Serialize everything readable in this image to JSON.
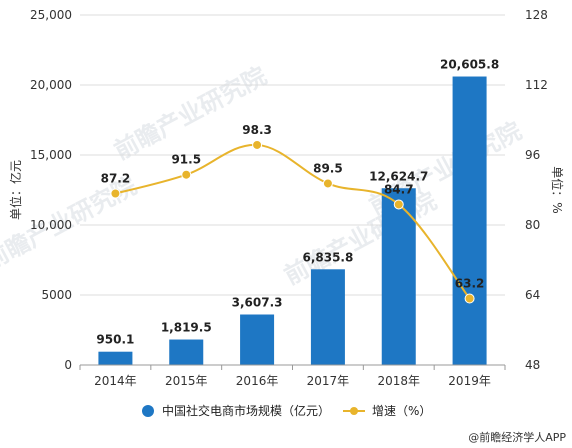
{
  "chart_data": {
    "type": "bar+line",
    "categories": [
      "2014年",
      "2015年",
      "2016年",
      "2017年",
      "2018年",
      "2019年"
    ],
    "series": [
      {
        "name": "中国社交电商市场规模（亿元）",
        "type": "bar",
        "axis": "left",
        "values": [
          950.1,
          1819.5,
          3607.3,
          6835.8,
          12624.7,
          20605.8
        ],
        "labels": [
          "950.1",
          "1,819.5",
          "3,607.3",
          "6,835.8",
          "12,624.7",
          "20,605.8"
        ]
      },
      {
        "name": "增速（%）",
        "type": "line",
        "axis": "right",
        "values": [
          87.2,
          91.5,
          98.3,
          89.5,
          84.7,
          63.2
        ],
        "labels": [
          "87.2",
          "91.5",
          "98.3",
          "89.5",
          "84.7",
          "63.2"
        ]
      }
    ],
    "left_axis": {
      "label": "单位：亿元",
      "range": [
        0,
        25000
      ],
      "ticks": [
        0,
        5000,
        10000,
        15000,
        20000,
        25000
      ],
      "tick_labels": [
        "0",
        "5000",
        "10,000",
        "15,000",
        "20,000",
        "25,000"
      ]
    },
    "right_axis": {
      "label": "单位：%",
      "range": [
        48,
        128
      ],
      "ticks": [
        48,
        64,
        80,
        96,
        112,
        128
      ],
      "tick_labels": [
        "48",
        "64",
        "80",
        "96",
        "112",
        "128"
      ]
    },
    "grid": true,
    "legend_position": "bottom",
    "colors": {
      "bar": "#1e77c4",
      "line": "#e8b42c"
    }
  },
  "watermark": "前瞻产业研究院",
  "source_text": "@前瞻经济学人APP"
}
